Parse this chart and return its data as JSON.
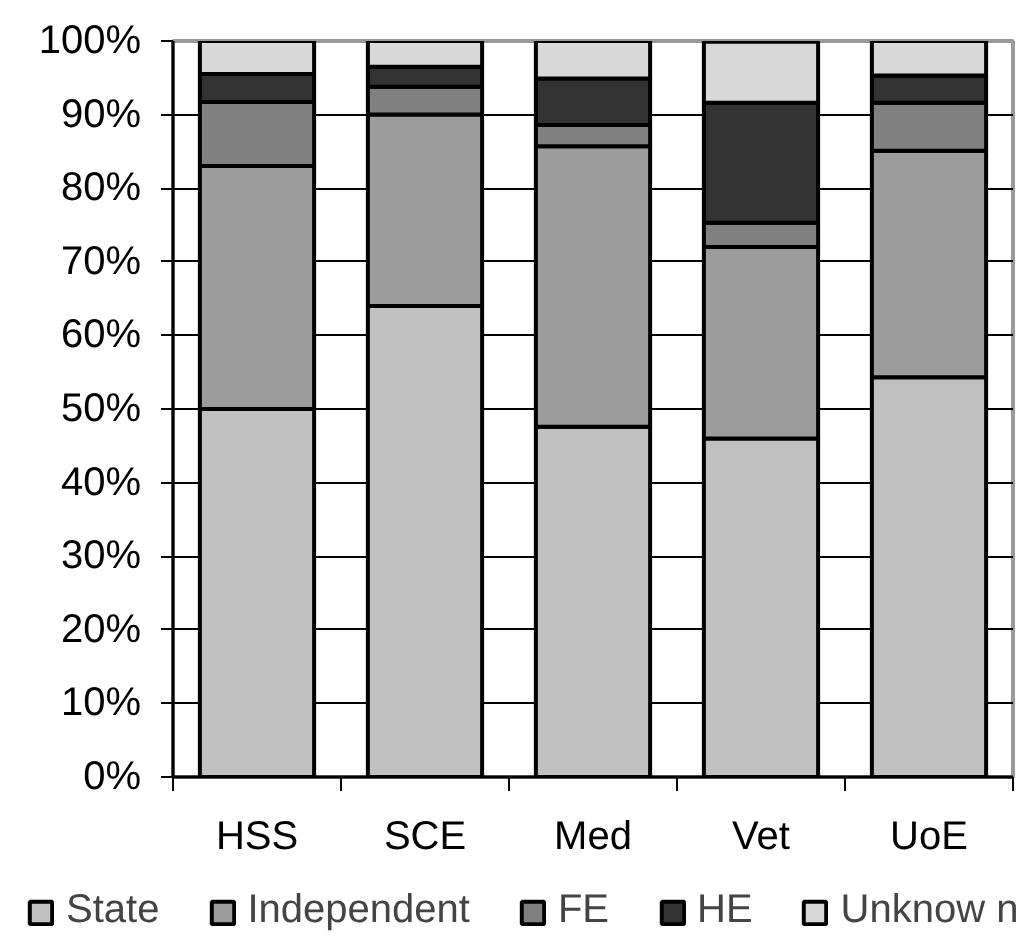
{
  "chart_data": {
    "type": "bar",
    "stacked": true,
    "categories": [
      "HSS",
      "SCE",
      "Med",
      "Vet",
      "UoE"
    ],
    "series": [
      {
        "name": "State",
        "color": "#c0c0c0",
        "values": [
          50.0,
          64.0,
          47.6,
          46.0,
          54.3
        ]
      },
      {
        "name": "Independent",
        "color": "#9c9c9c",
        "values": [
          33.0,
          26.0,
          38.1,
          26.0,
          30.8
        ]
      },
      {
        "name": "FE",
        "color": "#808080",
        "values": [
          8.7,
          3.8,
          2.9,
          3.3,
          6.5
        ]
      },
      {
        "name": "HE",
        "color": "#333333",
        "values": [
          3.8,
          2.7,
          6.3,
          16.3,
          3.7
        ]
      },
      {
        "name": "Unknow n",
        "color": "#d8d8d8",
        "values": [
          4.5,
          3.5,
          5.1,
          8.3,
          4.7
        ]
      }
    ],
    "ylim": [
      0,
      100
    ],
    "yticks": [
      {
        "value": 0,
        "label": "0%"
      },
      {
        "value": 10,
        "label": "10%"
      },
      {
        "value": 20,
        "label": "20%"
      },
      {
        "value": 30,
        "label": "30%"
      },
      {
        "value": 40,
        "label": "40%"
      },
      {
        "value": 50,
        "label": "50%"
      },
      {
        "value": 60,
        "label": "60%"
      },
      {
        "value": 70,
        "label": "70%"
      },
      {
        "value": 80,
        "label": "80%"
      },
      {
        "value": 90,
        "label": "90%"
      },
      {
        "value": 100,
        "label": "100%"
      }
    ],
    "grid": "y",
    "legend": "bottom"
  }
}
